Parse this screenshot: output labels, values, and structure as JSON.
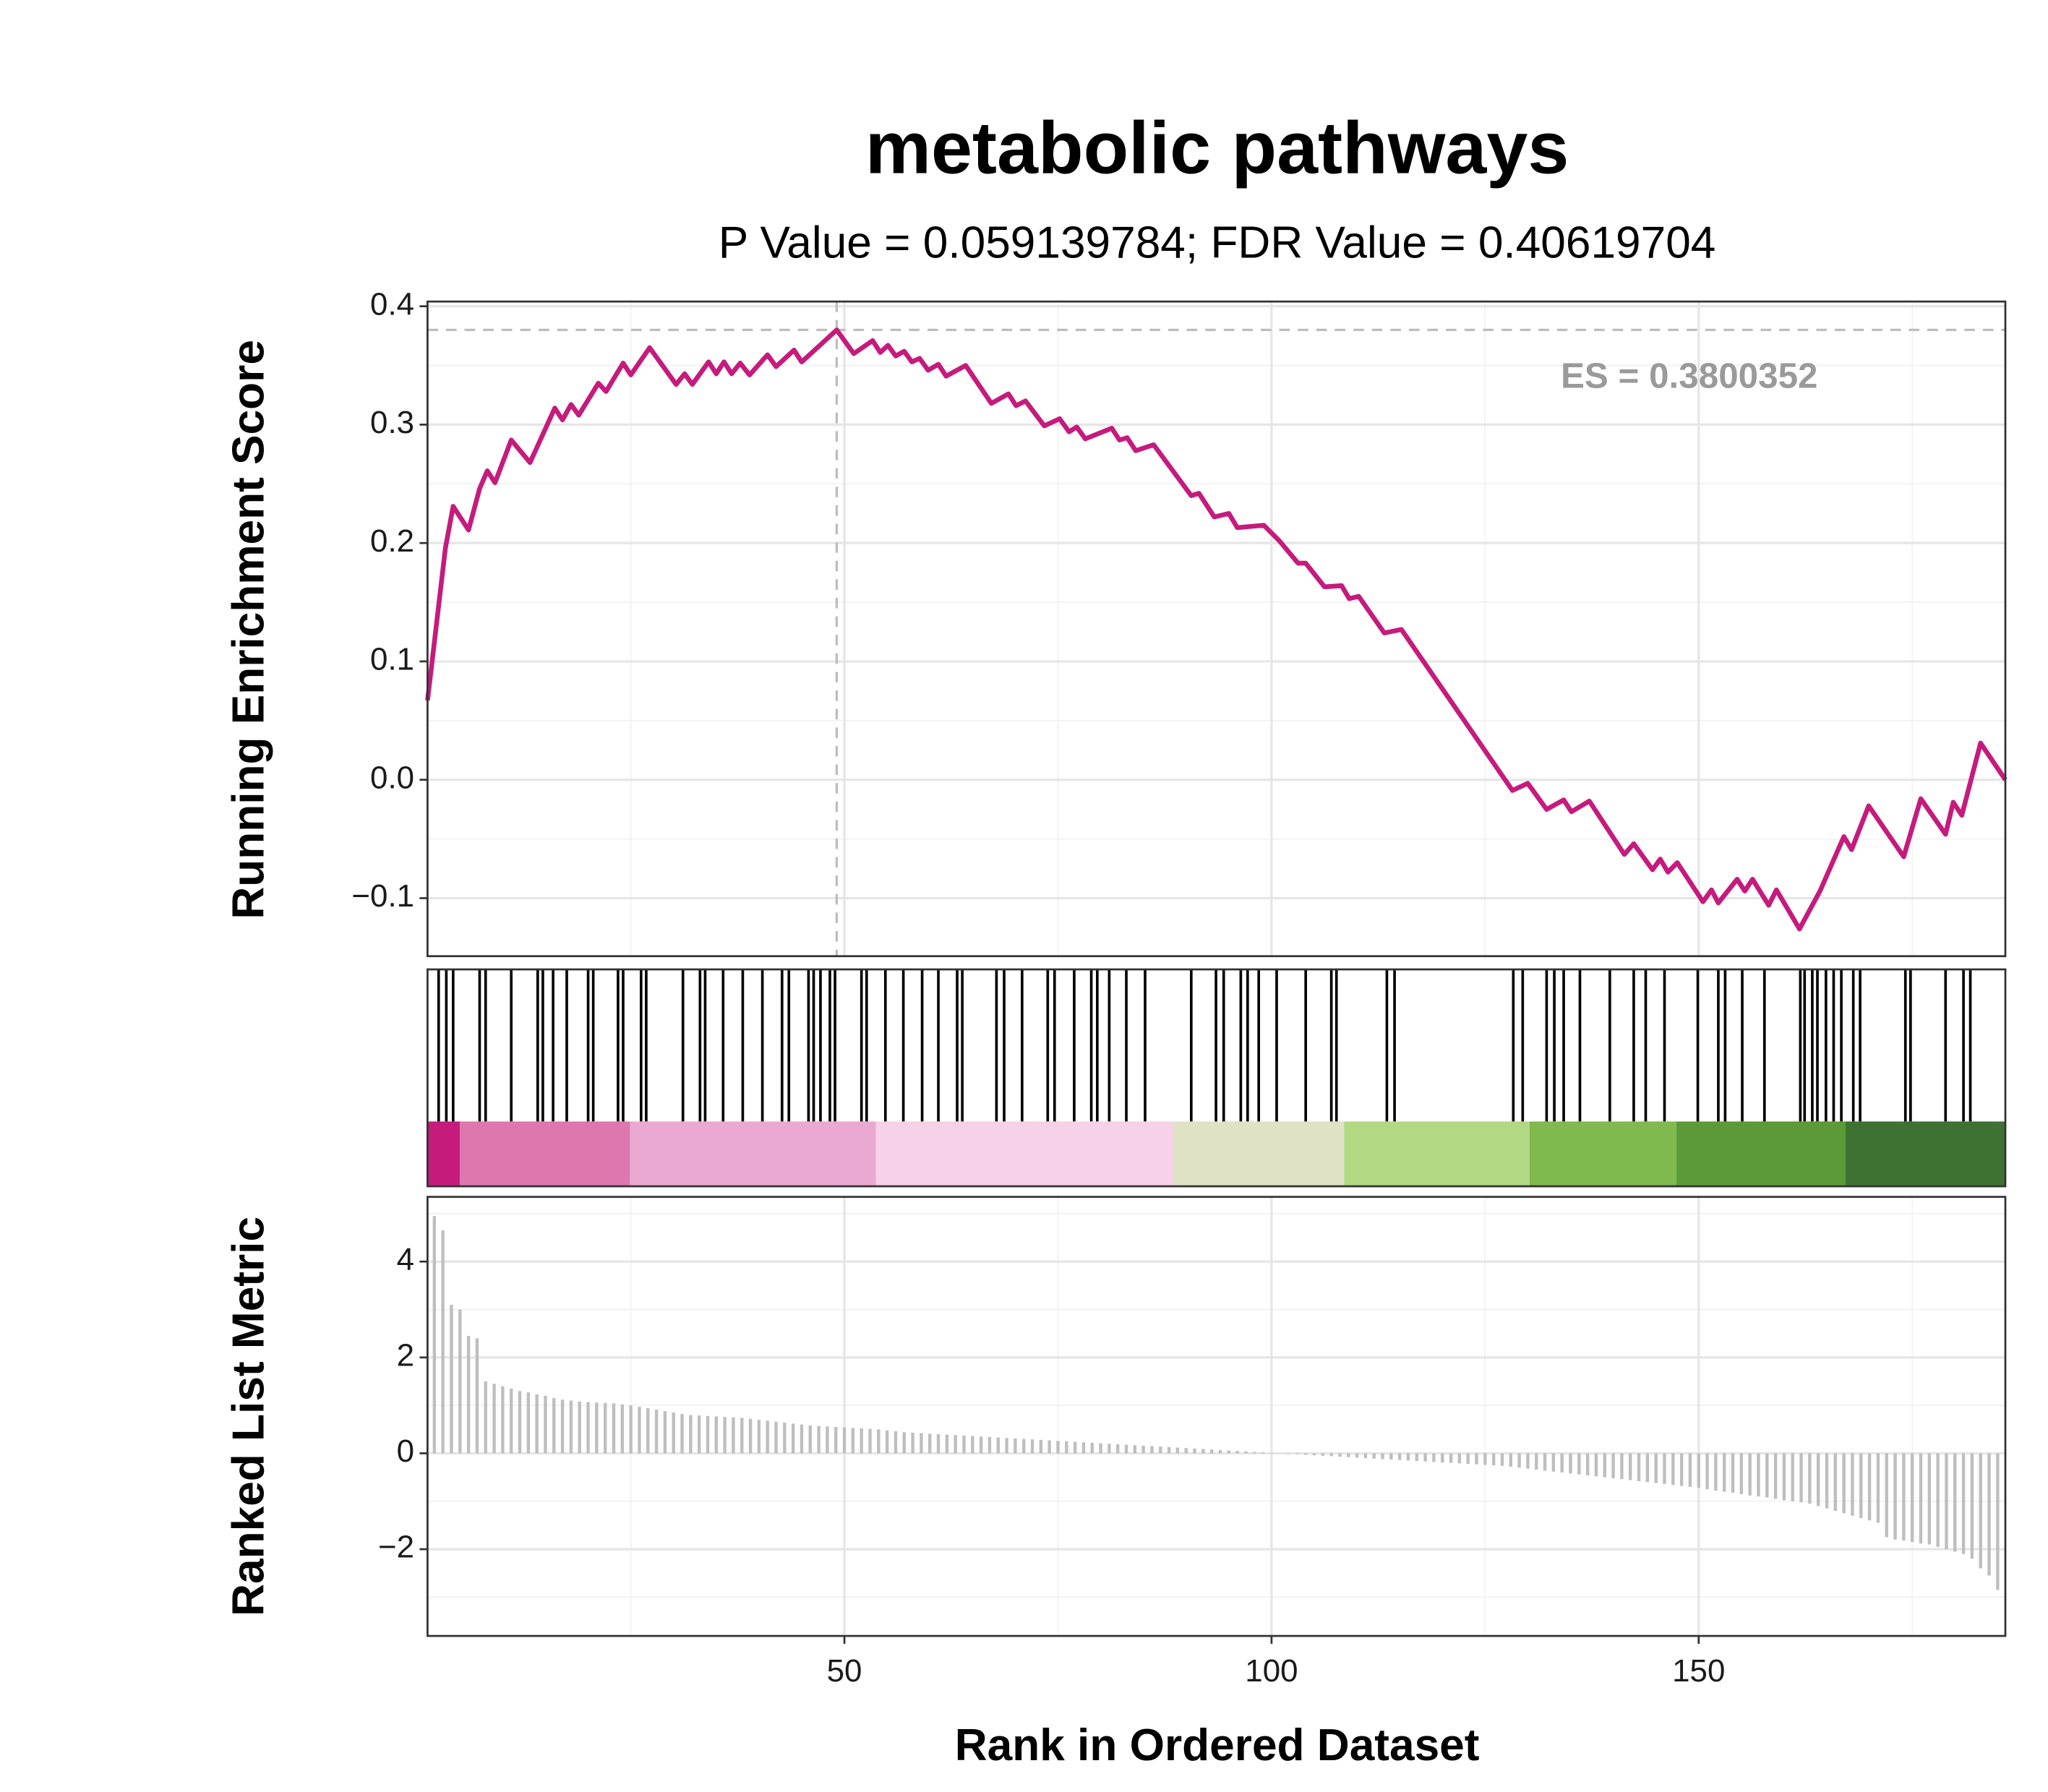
{
  "chart_data": [
    {
      "type": "line",
      "title": "metabolic pathways",
      "subtitle": "P Value = 0.059139784; FDR Value = 0.40619704",
      "y_label": "Running Enrichment Score",
      "color": "#c51b7d",
      "x": [
        1.2,
        3.3,
        4.2,
        6,
        7.3,
        8.2,
        9.1,
        11,
        13.2,
        16.1,
        17,
        18,
        18.9,
        21.2,
        22.1,
        24.1,
        25,
        27.2,
        30.3,
        31.3,
        32.2,
        34.1,
        35,
        35.9,
        36.8,
        37.8,
        38.9,
        41,
        42,
        44.1,
        45,
        49.1,
        51.1,
        53.3,
        54.2,
        55.1,
        56,
        57,
        57.9,
        58.8,
        59.8,
        61,
        61.9,
        64.2,
        67.2,
        69.2,
        70.1,
        71.2,
        73.4,
        75.2,
        76.3,
        77.2,
        78.2,
        81.3,
        82.2,
        83.1,
        84.1,
        86.2,
        90.6,
        91.5,
        93.3,
        95,
        96,
        99.1,
        100.9,
        103.1,
        104,
        106.2,
        108.2,
        109.1,
        110.2,
        113.2,
        115.2,
        128.2,
        130,
        132.2,
        134.2,
        135.1,
        137.2,
        141.3,
        142.4,
        144.6,
        145.5,
        146.4,
        147.5,
        150.5,
        151.5,
        152.3,
        154.5,
        155.4,
        156.3,
        158.2,
        159.1,
        161.8,
        164.2,
        167,
        167.9,
        169.9,
        174,
        176,
        178.9,
        179.8,
        180.8,
        183,
        185.9
      ],
      "values": [
        0.067,
        0.196,
        0.231,
        0.211,
        0.246,
        0.261,
        0.251,
        0.287,
        0.268,
        0.314,
        0.304,
        0.317,
        0.308,
        0.335,
        0.328,
        0.352,
        0.342,
        0.365,
        0.334,
        0.343,
        0.334,
        0.353,
        0.343,
        0.353,
        0.343,
        0.352,
        0.342,
        0.359,
        0.349,
        0.363,
        0.353,
        0.38,
        0.36,
        0.371,
        0.361,
        0.367,
        0.358,
        0.362,
        0.353,
        0.356,
        0.346,
        0.351,
        0.341,
        0.35,
        0.318,
        0.326,
        0.316,
        0.32,
        0.299,
        0.305,
        0.294,
        0.298,
        0.288,
        0.297,
        0.287,
        0.289,
        0.278,
        0.283,
        0.24,
        0.242,
        0.222,
        0.225,
        0.213,
        0.215,
        0.202,
        0.183,
        0.183,
        0.163,
        0.164,
        0.153,
        0.155,
        0.124,
        0.127,
        -0.009,
        -0.003,
        -0.025,
        -0.017,
        -0.027,
        -0.018,
        -0.063,
        -0.054,
        -0.076,
        -0.067,
        -0.078,
        -0.07,
        -0.103,
        -0.093,
        -0.104,
        -0.084,
        -0.094,
        -0.084,
        -0.106,
        -0.093,
        -0.126,
        -0.094,
        -0.048,
        -0.059,
        -0.022,
        -0.065,
        -0.016,
        -0.046,
        -0.019,
        -0.03,
        0.031,
        0
      ],
      "xlim": [
        1.2,
        185.9
      ],
      "ylim": [
        -0.149,
        0.404
      ],
      "yticks": [
        {
          "value": -0.1,
          "label": "−0.1"
        },
        {
          "value": 0,
          "label": "0.0"
        },
        0.1,
        0.2,
        0.3,
        0.4
      ],
      "xticks": [
        50,
        100,
        150
      ],
      "minor_xticks": [
        25,
        75,
        125,
        175
      ],
      "minor_yticks": [
        -0.05,
        0.05,
        0.15,
        0.25,
        0.35
      ],
      "grid": true,
      "annotation": "ES = 0.3800352",
      "es_value": 0.3800352,
      "es_x": 49.1
    },
    {
      "type": "rug",
      "xlim": [
        1.2,
        185.9
      ],
      "hit_color": "#000000",
      "hits": [
        2.5,
        3.4,
        4.2,
        7.3,
        8.0,
        11.0,
        14.1,
        14.7,
        15.9,
        17.5,
        20.0,
        20.6,
        23.5,
        24.1,
        26.2,
        26.8,
        31.1,
        33.1,
        33.7,
        35.8,
        38.1,
        40.4,
        42.7,
        43.5,
        45.8,
        46.4,
        47.2,
        48.3,
        48.9,
        52.0,
        52.6,
        54.8,
        56.9,
        59.1,
        61.0,
        63.2,
        63.8,
        67.8,
        68.7,
        70.8,
        73.8,
        74.6,
        76.9,
        78.9,
        79.6,
        81.0,
        83.0,
        85.2,
        90.6,
        93.5,
        94.4,
        96.4,
        97.2,
        98.5,
        100.6,
        104.0,
        107.0,
        107.6,
        113.5,
        114.4,
        128.3,
        129.4,
        132.2,
        133.1,
        134.2,
        136.1,
        139.6,
        142.4,
        143.8,
        146.0,
        149.9,
        152.3,
        153.1,
        155.1,
        157.7,
        161.9,
        162.4,
        163.3,
        163.9,
        164.9,
        165.8,
        166.7,
        168.1,
        168.9,
        174.2,
        174.8,
        178.9,
        181.0,
        181.8
      ],
      "band_breaks": [
        5,
        24.9,
        53.7,
        88.5,
        108.5,
        130.2,
        147.4,
        167.2
      ],
      "band_colors": [
        "#c51b7d",
        "#de77ae",
        "#eaa9d0",
        "#f6d1e7",
        "#dfe2c5",
        "#b1d983",
        "#80b94d",
        "#5b9a36",
        "#3d7233"
      ]
    },
    {
      "type": "bar",
      "y_label": "Ranked List Metric",
      "x_label": "Rank in Ordered Dataset",
      "color": "#bebebe",
      "x": [
        2,
        3,
        4,
        5,
        6,
        7,
        8,
        9,
        10,
        11,
        12,
        13,
        14,
        15,
        16,
        17,
        18,
        19,
        20,
        21,
        22,
        23,
        24,
        25,
        26,
        27,
        28,
        29,
        30,
        31,
        32,
        33,
        34,
        35,
        36,
        37,
        38,
        39,
        40,
        41,
        42,
        43,
        44,
        45,
        46,
        47,
        48,
        49,
        50,
        51,
        52,
        53,
        54,
        55,
        56,
        57,
        58,
        59,
        60,
        61,
        62,
        63,
        64,
        65,
        66,
        67,
        68,
        69,
        70,
        71,
        72,
        73,
        74,
        75,
        76,
        77,
        78,
        79,
        80,
        81,
        82,
        83,
        84,
        85,
        86,
        87,
        88,
        89,
        90,
        91,
        92,
        93,
        94,
        95,
        96,
        97,
        98,
        99,
        100,
        101,
        102,
        103,
        104,
        105,
        106,
        107,
        108,
        109,
        110,
        111,
        112,
        113,
        114,
        115,
        116,
        117,
        118,
        119,
        120,
        121,
        122,
        123,
        124,
        125,
        126,
        127,
        128,
        129,
        130,
        131,
        132,
        133,
        134,
        135,
        136,
        137,
        138,
        139,
        140,
        141,
        142,
        143,
        144,
        145,
        146,
        147,
        148,
        149,
        150,
        151,
        152,
        153,
        154,
        155,
        156,
        157,
        158,
        159,
        160,
        161,
        162,
        163,
        164,
        165,
        166,
        167,
        168,
        169,
        170,
        171,
        172,
        173,
        174,
        175,
        176,
        177,
        178,
        179,
        180,
        181,
        182,
        183,
        184,
        185
      ],
      "values": [
        4.95,
        4.65,
        3.1,
        3.0,
        2.45,
        2.4,
        1.5,
        1.45,
        1.4,
        1.35,
        1.3,
        1.27,
        1.23,
        1.2,
        1.15,
        1.12,
        1.1,
        1.08,
        1.07,
        1.06,
        1.05,
        1.04,
        1.02,
        1.0,
        0.97,
        0.94,
        0.91,
        0.88,
        0.85,
        0.82,
        0.8,
        0.79,
        0.78,
        0.77,
        0.76,
        0.75,
        0.74,
        0.72,
        0.7,
        0.68,
        0.66,
        0.64,
        0.62,
        0.6,
        0.58,
        0.57,
        0.56,
        0.55,
        0.54,
        0.53,
        0.52,
        0.51,
        0.5,
        0.48,
        0.46,
        0.44,
        0.43,
        0.42,
        0.41,
        0.4,
        0.39,
        0.38,
        0.37,
        0.36,
        0.35,
        0.34,
        0.33,
        0.32,
        0.31,
        0.3,
        0.29,
        0.28,
        0.27,
        0.26,
        0.25,
        0.24,
        0.23,
        0.22,
        0.21,
        0.2,
        0.19,
        0.18,
        0.17,
        0.16,
        0.15,
        0.14,
        0.13,
        0.12,
        0.11,
        0.1,
        0.09,
        0.08,
        0.07,
        0.06,
        0.05,
        0.04,
        0.03,
        0.02,
        0.01,
        0.0,
        -0.01,
        -0.02,
        -0.03,
        -0.04,
        -0.05,
        -0.06,
        -0.07,
        -0.08,
        -0.09,
        -0.1,
        -0.11,
        -0.12,
        -0.13,
        -0.14,
        -0.15,
        -0.16,
        -0.17,
        -0.18,
        -0.19,
        -0.2,
        -0.21,
        -0.22,
        -0.23,
        -0.24,
        -0.25,
        -0.26,
        -0.28,
        -0.3,
        -0.32,
        -0.34,
        -0.36,
        -0.38,
        -0.4,
        -0.42,
        -0.44,
        -0.46,
        -0.48,
        -0.5,
        -0.52,
        -0.54,
        -0.56,
        -0.58,
        -0.6,
        -0.62,
        -0.64,
        -0.66,
        -0.68,
        -0.7,
        -0.72,
        -0.75,
        -0.78,
        -0.8,
        -0.82,
        -0.85,
        -0.88,
        -0.9,
        -0.92,
        -0.95,
        -0.98,
        -1.0,
        -1.02,
        -1.05,
        -1.1,
        -1.15,
        -1.2,
        -1.25,
        -1.3,
        -1.35,
        -1.4,
        -1.45,
        -1.75,
        -1.8,
        -1.82,
        -1.85,
        -1.88,
        -1.9,
        -1.95,
        -2.0,
        -2.05,
        -2.1,
        -2.2,
        -2.4,
        -2.55,
        -2.85
      ],
      "xlim": [
        1.2,
        185.9
      ],
      "ylim": [
        -3.81,
        5.35
      ],
      "yticks": [
        {
          "value": -2,
          "label": "−2"
        },
        0,
        2,
        4
      ],
      "xticks": [
        50,
        100,
        150
      ],
      "minor_xticks": [
        25,
        75,
        125,
        175
      ],
      "minor_yticks": [
        -3,
        -1,
        1,
        3,
        5
      ],
      "grid": true
    }
  ]
}
